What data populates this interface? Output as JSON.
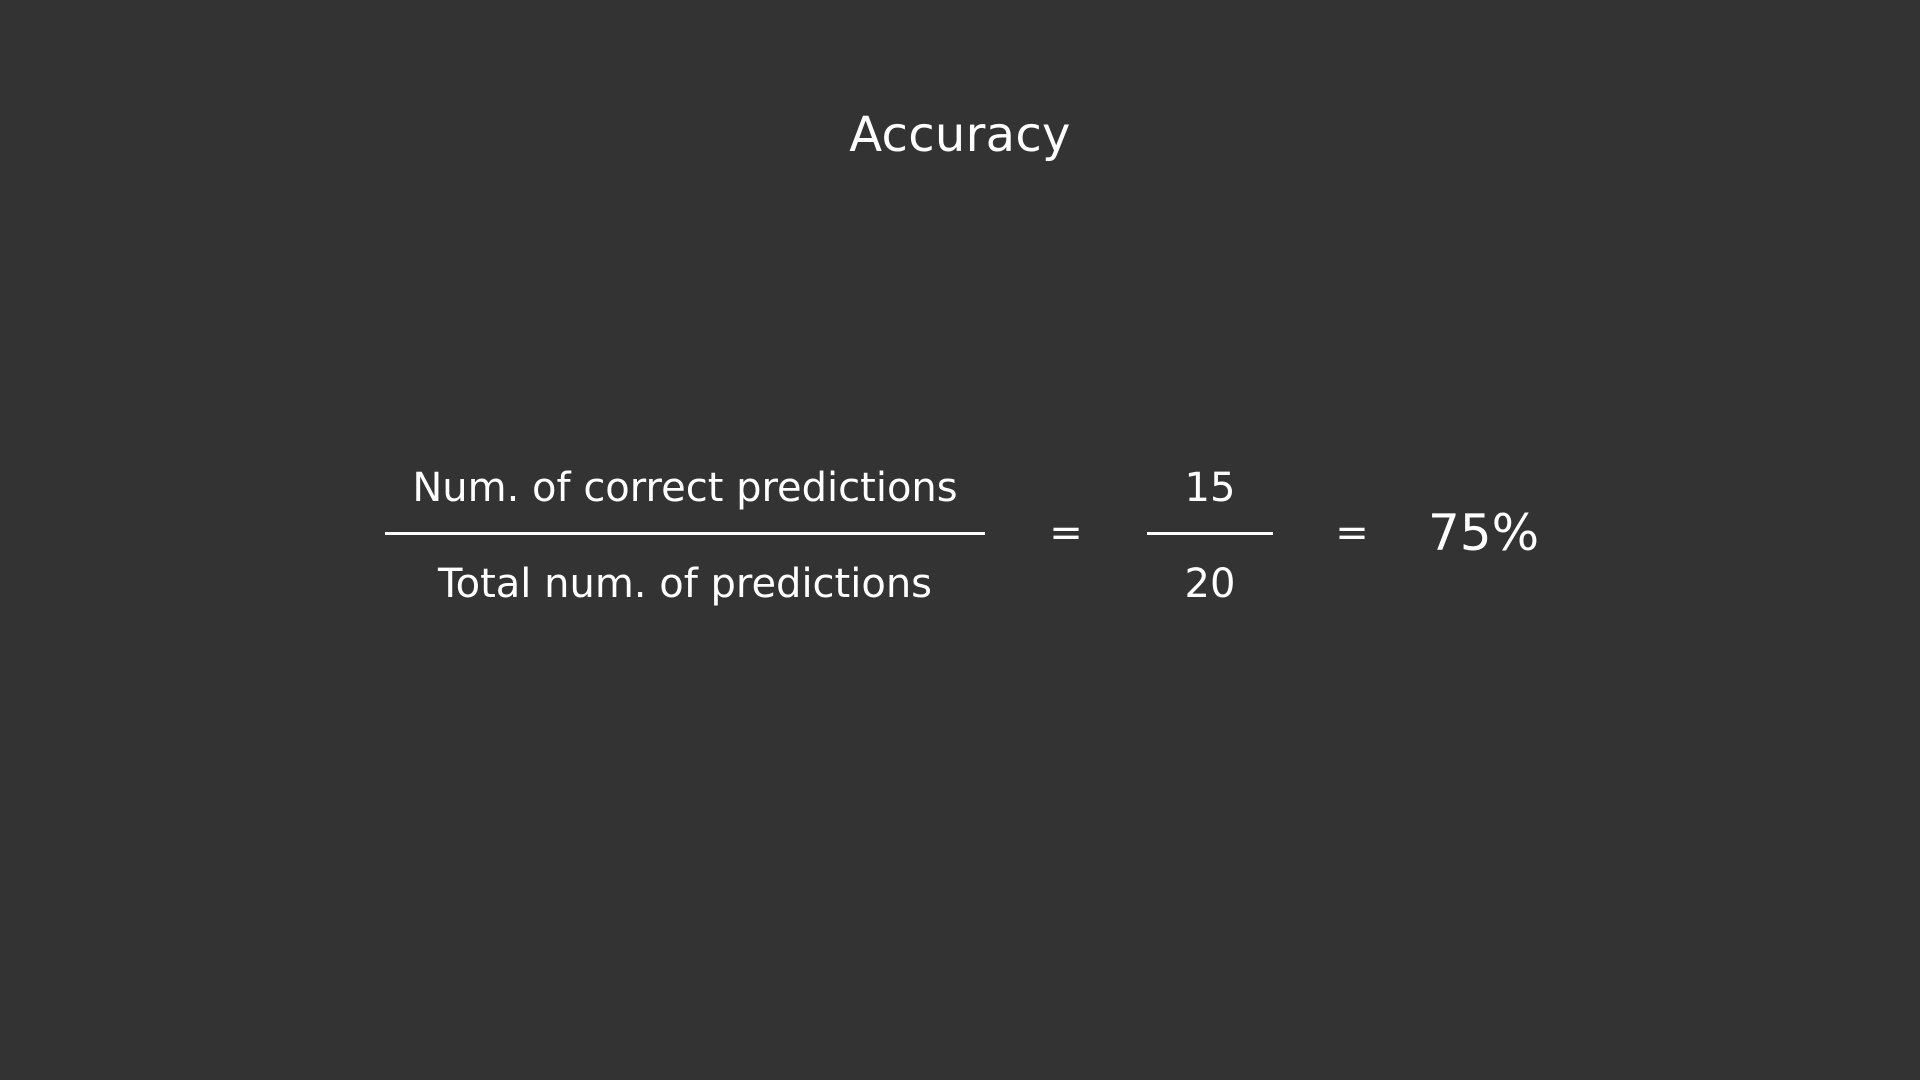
{
  "title": "Accuracy",
  "formula": {
    "word_fraction": {
      "numerator": "Num. of correct predictions",
      "denominator": "Total num. of predictions"
    },
    "equals_1": "=",
    "number_fraction": {
      "numerator": "15",
      "denominator": "20"
    },
    "equals_2": "=",
    "result": "75%"
  },
  "colors": {
    "background": "#333333",
    "text": "#ffffff"
  }
}
